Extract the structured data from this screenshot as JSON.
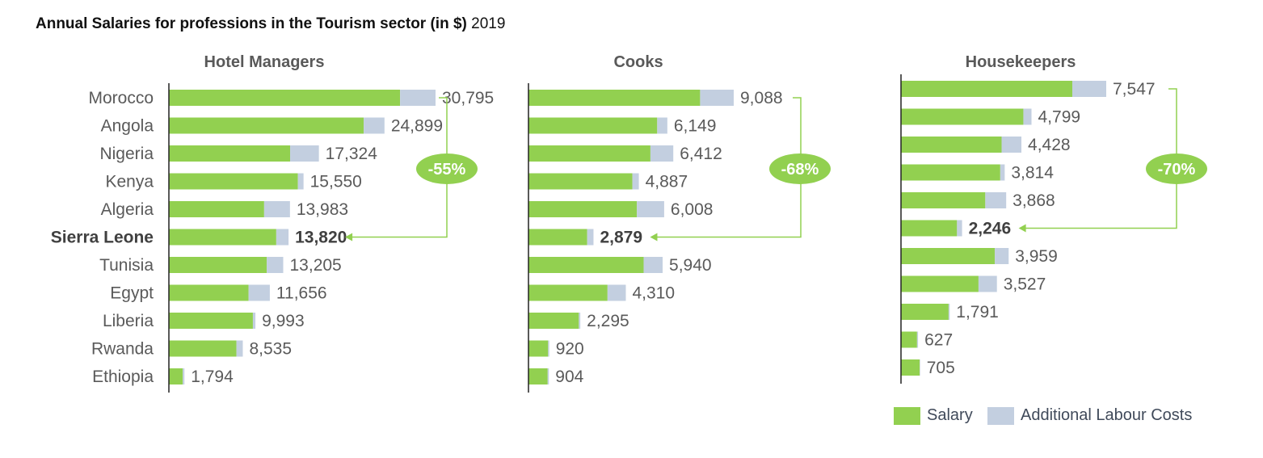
{
  "title": {
    "main": "Annual Salaries for professions in the Tourism sector (in $)",
    "year": "2019"
  },
  "colors": {
    "salary": "#92d050",
    "additional": "#c3cfe0",
    "badge": "#92d050",
    "label_text": "#5a5a5a",
    "axis": "#222222"
  },
  "legend": {
    "salary_label": "Salary",
    "additional_label": "Additional Labour Costs"
  },
  "chart_data": [
    {
      "type": "bar",
      "stacked": true,
      "orientation": "horizontal",
      "title": "Hotel Managers",
      "categories": [
        "Morocco",
        "Angola",
        "Nigeria",
        "Kenya",
        "Algeria",
        "Sierra Leone",
        "Tunisia",
        "Egypt",
        "Liberia",
        "Rwanda",
        "Ethiopia"
      ],
      "highlight_category": "Sierra Leone",
      "totals": [
        30795,
        24899,
        17324,
        15550,
        13983,
        13820,
        13205,
        11656,
        9993,
        8535,
        1794
      ],
      "total_labels": [
        "30,795",
        "24,899",
        "17,324",
        "15,550",
        "13,983",
        "13,820",
        "13,205",
        "11,656",
        "9,993",
        "8,535",
        "1,794"
      ],
      "series": [
        {
          "name": "Salary",
          "values": [
            26700,
            22500,
            14000,
            14900,
            11000,
            12400,
            11300,
            9200,
            9700,
            7800,
            1600
          ]
        },
        {
          "name": "Additional Labour Costs",
          "values": [
            4095,
            2399,
            3324,
            650,
            2983,
            1420,
            1905,
            2456,
            293,
            735,
            194
          ]
        }
      ],
      "annotation": {
        "label": "-55%",
        "from": "Morocco",
        "to": "Sierra Leone"
      }
    },
    {
      "type": "bar",
      "stacked": true,
      "orientation": "horizontal",
      "title": "Cooks",
      "categories": [
        "Morocco",
        "Angola",
        "Nigeria",
        "Kenya",
        "Algeria",
        "Sierra Leone",
        "Tunisia",
        "Egypt",
        "Liberia",
        "Rwanda",
        "Ethiopia"
      ],
      "highlight_category": "Sierra Leone",
      "totals": [
        9088,
        6149,
        6412,
        4887,
        6008,
        2879,
        5940,
        4310,
        2295,
        920,
        904
      ],
      "total_labels": [
        "9,088",
        "6,149",
        "6,412",
        "4,887",
        "6,008",
        "2,879",
        "5,940",
        "4,310",
        "2,295",
        "920",
        "904"
      ],
      "series": [
        {
          "name": "Salary",
          "values": [
            7600,
            5700,
            5400,
            4600,
            4800,
            2600,
            5100,
            3500,
            2230,
            870,
            850
          ]
        },
        {
          "name": "Additional Labour Costs",
          "values": [
            1488,
            449,
            1012,
            287,
            1208,
            279,
            840,
            810,
            65,
            50,
            54
          ]
        }
      ],
      "annotation": {
        "label": "-68%",
        "from": "Morocco",
        "to": "Sierra Leone"
      }
    },
    {
      "type": "bar",
      "stacked": true,
      "orientation": "horizontal",
      "title": "Housekeepers",
      "categories": [
        "Morocco",
        "Angola",
        "Nigeria",
        "Kenya",
        "Algeria",
        "Sierra Leone",
        "Tunisia",
        "Egypt",
        "Liberia",
        "Rwanda",
        "Ethiopia"
      ],
      "highlight_category": "Sierra Leone",
      "totals": [
        7547,
        4799,
        4428,
        3814,
        3868,
        2246,
        3959,
        3527,
        1791,
        627,
        705
      ],
      "total_labels": [
        "7,547",
        "4,799",
        "4,428",
        "3,814",
        "3,868",
        "2,246",
        "3,959",
        "3,527",
        "1,791",
        "627",
        "705"
      ],
      "series": [
        {
          "name": "Salary",
          "values": [
            6300,
            4500,
            3700,
            3650,
            3100,
            2060,
            3450,
            2850,
            1750,
            590,
            690
          ]
        },
        {
          "name": "Additional Labour Costs",
          "values": [
            1247,
            299,
            728,
            164,
            768,
            186,
            509,
            677,
            41,
            37,
            15
          ]
        }
      ],
      "annotation": {
        "label": "-70%",
        "from": "Morocco",
        "to": "Sierra Leone"
      }
    }
  ]
}
